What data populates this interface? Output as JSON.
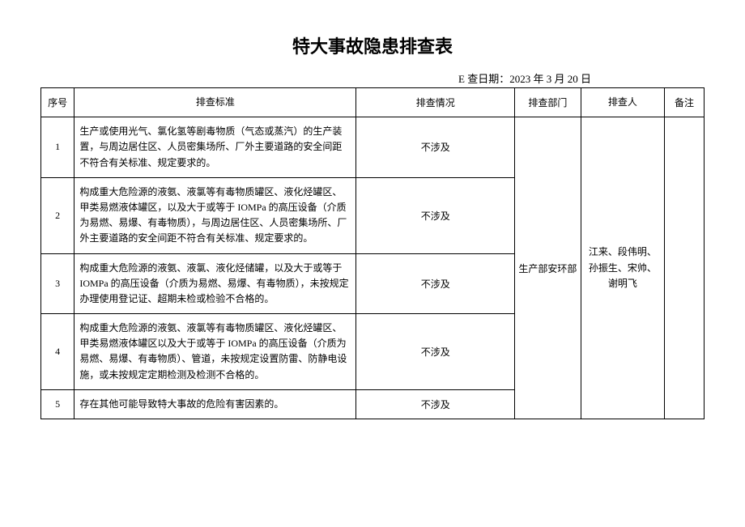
{
  "title": "特大事故隐患排查表",
  "date_label": "E 查日期：2023 年 3 月 20 日",
  "headers": {
    "seq": "序号",
    "standard": "排查标准",
    "status": "排查情况",
    "dept": "排查部门",
    "person": "排查人",
    "remark": "备注"
  },
  "rows": [
    {
      "seq": "1",
      "standard": "生产或使用光气、氯化氢等剧毒物质（气态或蒸汽）的生产装置，与周边居住区、人员密集场所、厂外主要道路的安全间距不符合有关标准、规定要求的。",
      "status": "不涉及"
    },
    {
      "seq": "2",
      "standard": "构成重大危险源的液氨、液氯等有毒物质罐区、液化烃罐区、甲类易燃液体罐区，以及大于或等于 IOMPa 的高压设备（介质为易燃、易爆、有毒物质），与周边居住区、人员密集场所、厂外主要道路的安全间距不符合有关标准、规定要求的。",
      "status": "不涉及"
    },
    {
      "seq": "3",
      "standard": "构成重大危险源的液氨、液氯、液化烃储罐，以及大于或等于 IOMPa 的高压设备（介质为易燃、易爆、有毒物质），未按规定办理使用登记证、超期未检或检验不合格的。",
      "status": "不涉及"
    },
    {
      "seq": "4",
      "standard": "构成重大危险源的液氨、液氯等有毒物质罐区、液化烃罐区、甲类易燃液体罐区以及大于或等于 IOMPa 的高压设备（介质为易燃、易爆、有毒物质）、管道，未按规定设置防雷、防静电设施，或未按规定定期检测及检测不合格的。",
      "status": "不涉及"
    },
    {
      "seq": "5",
      "standard": "存在其他可能导致特大事故的危险有害因素的。",
      "status": "不涉及"
    }
  ],
  "dept": "生产部安环部",
  "persons": "江来、段伟明、孙振生、宋帅、谢明飞"
}
